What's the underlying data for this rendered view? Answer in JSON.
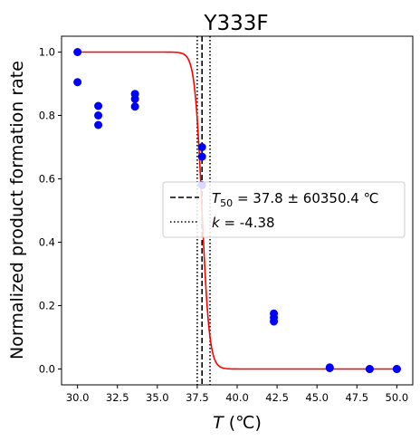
{
  "chart_data": {
    "type": "scatter",
    "title": "Y333F",
    "xlabel": {
      "var": "T",
      "unit": " (℃)"
    },
    "ylabel": "Normalized product formation rate",
    "xlim": [
      29.0,
      51.0
    ],
    "ylim": [
      -0.05,
      1.05
    ],
    "xticks": [
      30.0,
      32.5,
      35.0,
      37.5,
      40.0,
      42.5,
      45.0,
      47.5,
      50.0
    ],
    "xtick_labels": [
      "30.0",
      "32.5",
      "35.0",
      "37.5",
      "40.0",
      "42.5",
      "45.0",
      "47.5",
      "50.0"
    ],
    "yticks": [
      0.0,
      0.2,
      0.4,
      0.6,
      0.8,
      1.0
    ],
    "ytick_labels": [
      "0.0",
      "0.2",
      "0.4",
      "0.6",
      "0.8",
      "1.0"
    ],
    "grid": false,
    "legend_placement": "center-right",
    "series": [
      {
        "kind": "points",
        "color": "#0000ff",
        "x": [
          30.0,
          30.0,
          31.3,
          31.3,
          31.3,
          33.6,
          33.6,
          33.6,
          37.8,
          37.8,
          37.8,
          42.3,
          42.3,
          42.3,
          45.8,
          45.8,
          48.3,
          48.3,
          50.0,
          50.0
        ],
        "y": [
          1.0,
          0.905,
          0.83,
          0.8,
          0.77,
          0.868,
          0.852,
          0.828,
          0.7,
          0.67,
          0.58,
          0.175,
          0.162,
          0.15,
          0.005,
          0.003,
          0.0,
          0.0,
          0.0,
          0.0
        ]
      },
      {
        "kind": "fit",
        "color": "#ff0000",
        "model": "logistic",
        "x_start": 30.0,
        "x_end": 50.0,
        "plateau": 1.0,
        "midpoint": 37.8,
        "slope": -4.38
      }
    ],
    "reference_lines": [
      {
        "x": 37.8,
        "style": "dashed",
        "color": "#000000"
      },
      {
        "x": 37.5,
        "style": "dotted",
        "color": "#000000"
      },
      {
        "x": 38.3,
        "style": "dotted",
        "color": "#000000"
      }
    ],
    "legend": [
      {
        "style": "dashed",
        "sym": "T",
        "sub": "50",
        "text": " = 37.8 ± 60350.4 ℃"
      },
      {
        "style": "dotted",
        "sym": "k",
        "text": " = -4.38"
      }
    ]
  }
}
